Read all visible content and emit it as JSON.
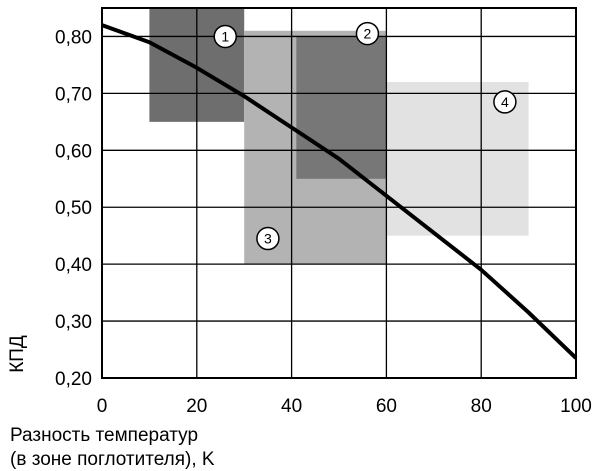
{
  "chart_data": {
    "type": "line",
    "title": "",
    "ylabel": "КПД",
    "xlabel_lines": [
      "Разность температур",
      "(в зоне поглотителя), K"
    ],
    "xlim": [
      0,
      100
    ],
    "ylim": [
      0.2,
      0.85
    ],
    "xticks": [
      0,
      20,
      40,
      60,
      80,
      100
    ],
    "xtick_labels": [
      "0",
      "20",
      "40",
      "60",
      "80",
      "100"
    ],
    "yticks": [
      0.2,
      0.3,
      0.4,
      0.5,
      0.6,
      0.7,
      0.8
    ],
    "ytick_labels": [
      "0,20",
      "0,30",
      "0,40",
      "0,50",
      "0,60",
      "0,70",
      "0,80"
    ],
    "grid": true,
    "series": [
      {
        "x": [
          0,
          10,
          20,
          30,
          40,
          50,
          60,
          70,
          80,
          90,
          100
        ],
        "y": [
          0.82,
          0.79,
          0.745,
          0.695,
          0.64,
          0.585,
          0.52,
          0.455,
          0.39,
          0.315,
          0.235
        ]
      }
    ],
    "regions": [
      {
        "label": "1",
        "x": [
          10,
          30
        ],
        "y": [
          0.65,
          0.85
        ],
        "color": "#6e6e6e",
        "marker_at": [
          26,
          0.8
        ]
      },
      {
        "label": "3",
        "x": [
          30,
          60
        ],
        "y": [
          0.4,
          0.81
        ],
        "color": "#b3b3b3",
        "marker_at": [
          35,
          0.445
        ]
      },
      {
        "label": "4",
        "x": [
          60,
          90
        ],
        "y": [
          0.45,
          0.72
        ],
        "color": "#e2e2e2",
        "marker_at": [
          85,
          0.685
        ]
      },
      {
        "label": "2",
        "x": [
          41,
          60
        ],
        "y": [
          0.55,
          0.8
        ],
        "color": "#777777",
        "marker_at": [
          56,
          0.805
        ]
      }
    ]
  }
}
